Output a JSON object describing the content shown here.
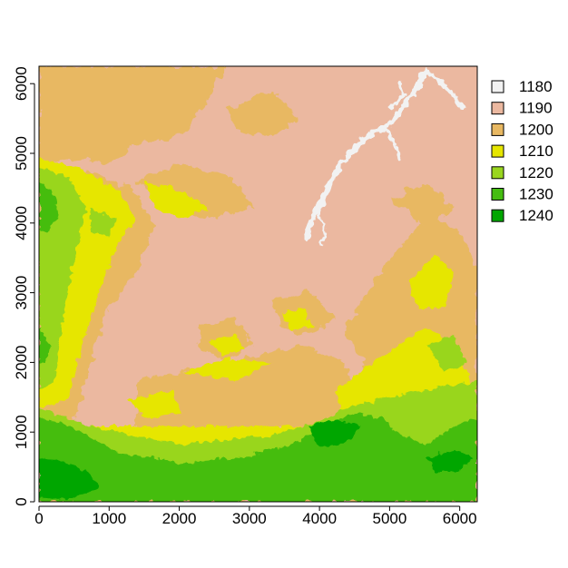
{
  "map": {
    "x_ticks": [
      "0",
      "1000",
      "2000",
      "3000",
      "4000",
      "5000",
      "6000"
    ],
    "y_ticks": [
      "0",
      "1000",
      "2000",
      "3000",
      "4000",
      "5000",
      "6000"
    ],
    "extent": {
      "xmin": 0,
      "xmax": 6250,
      "ymin": 0,
      "ymax": 6250
    },
    "legend": [
      {
        "label": "1180",
        "color": "#f2f2f2"
      },
      {
        "label": "1190",
        "color": "#ebb8a0"
      },
      {
        "label": "1200",
        "color": "#e8b862"
      },
      {
        "label": "1210",
        "color": "#e6e600"
      },
      {
        "label": "1220",
        "color": "#99d61f"
      },
      {
        "label": "1230",
        "color": "#45bd11"
      },
      {
        "label": "1240",
        "color": "#00a600"
      }
    ]
  }
}
